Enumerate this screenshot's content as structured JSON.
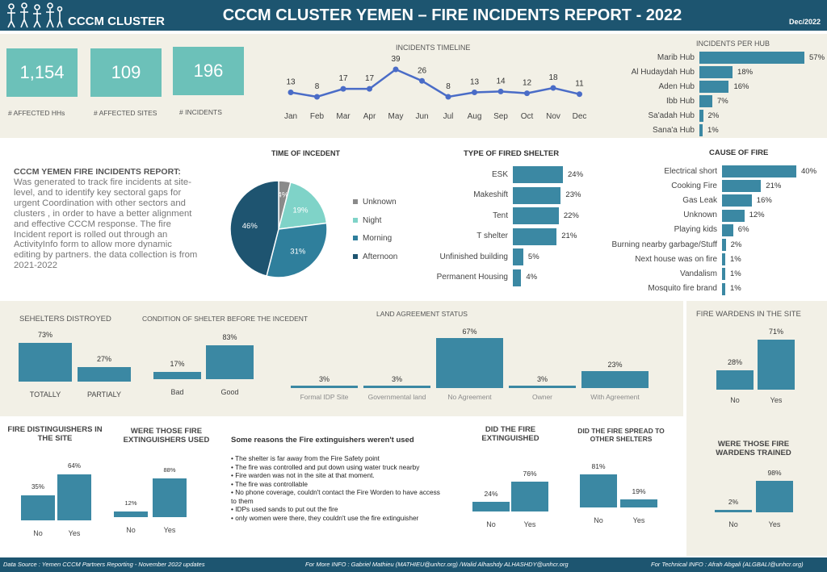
{
  "header": {
    "logo_text": "CCCM CLUSTER",
    "title": "CCCM CLUSTER YEMEN – FIRE INCIDENTS REPORT - 2022",
    "date": "Dec/2022"
  },
  "kpis": [
    {
      "value": "1,154",
      "label": "# AFFECTED HHs"
    },
    {
      "value": "109",
      "label": "# AFFECTED SITES"
    },
    {
      "value": "196",
      "label": "# INCIDENTS"
    }
  ],
  "description": {
    "title": "CCCM YEMEN FIRE INCIDENTS REPORT:",
    "body": "Was generated to track fire incidents at site-level, and to identify key sectoral gaps for urgent Coordination with other sectors and clusters , in order to have a better alignment and effective CCCM response. The fire Incident report is rolled out through an ActivityInfo form to allow more dynamic editing by partners. the data collection is from 2021-2022"
  },
  "reasons": {
    "title": "Some reasons the Fire extinguishers weren't used",
    "items": [
      "• The shelter is far away from the Fire Safety point",
      "• The fire was controlled and put down using water truck nearby",
      "• Fire warden was not in the site at that moment.",
      "• The fire was controllable",
      "• No phone coverage, couldn't contact the Fire Worden to have access to them",
      "• IDPs used sands to put out the fire",
      "• only women were there, they couldn't use the fire extinguisher"
    ]
  },
  "footer": {
    "source": "Data Source : Yemen CCCM Partners Reporting - November 2022 updates",
    "info": "For More INFO : Gabriel Mathieu (MATHIEU@unhcr.org) /Walid Alhashdy ALHASHDY@unhcr.org",
    "tech": "For Technical INFO : Afrah Abgali (ALGBALI@unhcr.org)"
  },
  "colors": {
    "header": "#1d5570",
    "bar": "#3b88a3",
    "kpi": "#6cc1b9",
    "line": "#4a6cc7",
    "panel": "#f2f0e6"
  },
  "chart_data": [
    {
      "id": "timeline",
      "type": "line",
      "title": "INCIDENTS TIMELINE",
      "categories": [
        "Jan",
        "Feb",
        "Mar",
        "Apr",
        "May",
        "Jun",
        "Jul",
        "Aug",
        "Sep",
        "Oct",
        "Nov",
        "Dec"
      ],
      "values": [
        13,
        8,
        17,
        17,
        39,
        26,
        8,
        13,
        14,
        12,
        18,
        11
      ],
      "labels": [
        "13",
        "8",
        "17",
        "17",
        "39",
        "26",
        "8",
        "13",
        "14",
        "12",
        "18",
        "11"
      ]
    },
    {
      "id": "hub",
      "type": "bar",
      "orientation": "horizontal",
      "title": "INCIDENTS PER HUB",
      "categories": [
        "Marib Hub",
        "Al Hudaydah Hub",
        "Aden Hub",
        "Ibb Hub",
        "Sa'adah Hub",
        "Sana'a Hub"
      ],
      "values": [
        57,
        18,
        16,
        7,
        2,
        1
      ],
      "labels": [
        "57%",
        "18%",
        "16%",
        "7%",
        "2%",
        "1%"
      ]
    },
    {
      "id": "time",
      "type": "pie",
      "title": "TIME OF INCEDENT",
      "categories": [
        "Unknown",
        "Night",
        "Morning",
        "Afternoon"
      ],
      "values": [
        4,
        19,
        31,
        46
      ],
      "labels": [
        "4%",
        "19%",
        "31%",
        "46%"
      ],
      "colors": [
        "#8a8a8a",
        "#7fd3c8",
        "#2f7f9c",
        "#1e5470"
      ]
    },
    {
      "id": "shelter",
      "type": "bar",
      "orientation": "horizontal",
      "title": "TYPE OF FIRED SHELTER",
      "categories": [
        "ESK",
        "Makeshift",
        "Tent",
        "T shelter",
        "Unfinished building",
        "Permanent Housing"
      ],
      "values": [
        24,
        23,
        22,
        21,
        5,
        4
      ],
      "labels": [
        "24%",
        "23%",
        "22%",
        "21%",
        "5%",
        "4%"
      ]
    },
    {
      "id": "cause",
      "type": "bar",
      "orientation": "horizontal",
      "title": "CAUSE OF FIRE",
      "categories": [
        "Electrical short",
        "Cooking Fire",
        "Gas Leak",
        "Unknown",
        "Playing kids",
        "Burning nearby garbage/Stuff",
        "Next house was on fire",
        "Vandalism",
        "Mosquito fire brand"
      ],
      "values": [
        40,
        21,
        16,
        12,
        6,
        2,
        1,
        1,
        1
      ],
      "labels": [
        "40%",
        "21%",
        "16%",
        "12%",
        "6%",
        "2%",
        "1%",
        "1%",
        "1%"
      ]
    },
    {
      "id": "destroyed",
      "type": "bar",
      "title": "SEHELTERS DISTROYED",
      "categories": [
        "TOTALLY",
        "PARTIALY"
      ],
      "values": [
        73,
        27
      ],
      "labels": [
        "73%",
        "27%"
      ]
    },
    {
      "id": "condition",
      "type": "bar",
      "title": "CONDITION OF SHELTER BEFORE THE INCEDENT",
      "categories": [
        "Bad",
        "Good"
      ],
      "values": [
        17,
        83
      ],
      "labels": [
        "17%",
        "83%"
      ]
    },
    {
      "id": "land",
      "type": "bar",
      "title": "LAND AGREEMENT STATUS",
      "categories": [
        "Formal IDP Site",
        "Governmental land",
        "No Agreement",
        "Owner",
        "With Agreement"
      ],
      "values": [
        3,
        3,
        67,
        3,
        23
      ],
      "labels": [
        "3%",
        "3%",
        "67%",
        "3%",
        "23%"
      ]
    },
    {
      "id": "wardens",
      "type": "bar",
      "title": "FIRE WARDENS IN THE SITE",
      "categories": [
        "No",
        "Yes"
      ],
      "values": [
        28,
        71
      ],
      "labels": [
        "28%",
        "71%"
      ]
    },
    {
      "id": "ext_site",
      "type": "bar",
      "title": "FIRE DISTINGUISHERS IN THE SITE",
      "categories": [
        "No",
        "Yes"
      ],
      "values": [
        35,
        64
      ],
      "labels": [
        "35%",
        "64%"
      ]
    },
    {
      "id": "ext_used",
      "type": "bar",
      "title": "WERE THOSE FIRE EXTINGUISHERS USED",
      "categories": [
        "No",
        "Yes"
      ],
      "values": [
        12,
        88
      ],
      "labels": [
        "12%",
        "88%"
      ]
    },
    {
      "id": "extinguished",
      "type": "bar",
      "title": "DID THE FIRE EXTINGUISHED",
      "categories": [
        "No",
        "Yes"
      ],
      "values": [
        24,
        76
      ],
      "labels": [
        "24%",
        "76%"
      ]
    },
    {
      "id": "spread",
      "type": "bar",
      "title": "DID THE FIRE SPREAD TO OTHER SHELTERS",
      "categories": [
        "No",
        "Yes"
      ],
      "values": [
        81,
        19
      ],
      "labels": [
        "81%",
        "19%"
      ]
    },
    {
      "id": "trained",
      "type": "bar",
      "title": "WERE THOSE FIRE WARDENS TRAINED",
      "categories": [
        "No",
        "Yes"
      ],
      "values": [
        2,
        98
      ],
      "labels": [
        "2%",
        "98%"
      ]
    }
  ]
}
